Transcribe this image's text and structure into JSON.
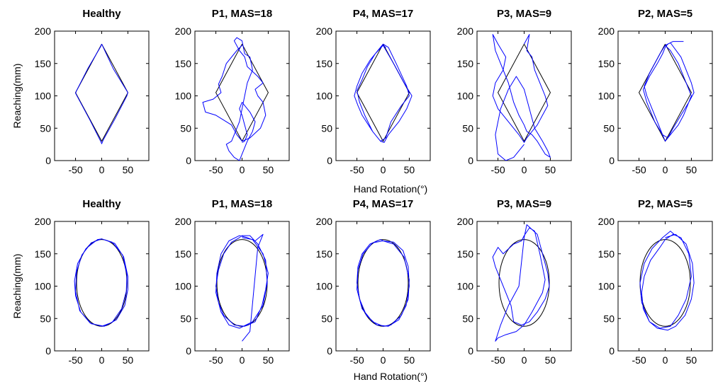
{
  "figure": {
    "xlabel": "Hand Rotation(°)",
    "ylabel": "Reaching(mm)",
    "colors": {
      "trajectory": "#0000ff",
      "reference": "#000000",
      "axes": "#000000"
    }
  },
  "chart_data": [
    {
      "type": "line",
      "row": 1,
      "col": 1,
      "shape": "diamond",
      "title": "Healthy",
      "xlim": [
        -90,
        90
      ],
      "ylim": [
        0,
        200
      ],
      "xticks": [
        -50,
        0,
        50
      ],
      "yticks": [
        0,
        50,
        100,
        150,
        200
      ],
      "ylabel": "Reaching(mm)",
      "xlabel": "",
      "reference": {
        "name": "",
        "x": [
          0,
          50,
          0,
          -50,
          0
        ],
        "y": [
          180,
          105,
          30,
          105,
          180
        ]
      },
      "series": [
        {
          "name": "",
          "x": [
            0,
            22,
            50,
            48,
            25,
            3,
            0,
            -2,
            -22,
            -50,
            -48,
            -26,
            -2,
            0
          ],
          "y": [
            180,
            142,
            105,
            100,
            64,
            32,
            26,
            30,
            62,
            104,
            108,
            143,
            176,
            180
          ]
        }
      ]
    },
    {
      "type": "line",
      "row": 1,
      "col": 2,
      "shape": "diamond",
      "title": "P1, MAS=18",
      "xlim": [
        -90,
        90
      ],
      "ylim": [
        0,
        200
      ],
      "xticks": [
        -50,
        0,
        50
      ],
      "yticks": [
        0,
        50,
        100,
        150,
        200
      ],
      "ylabel": "",
      "xlabel": "",
      "reference": {
        "name": "",
        "x": [
          0,
          50,
          0,
          -50,
          0
        ],
        "y": [
          180,
          105,
          30,
          105,
          180
        ]
      },
      "series": [
        {
          "name": "",
          "x": [
            0,
            -10,
            -30,
            -38,
            -45,
            -40,
            -55,
            -75,
            -70,
            -50,
            -30,
            -20,
            -10,
            0,
            15,
            35,
            45,
            40,
            30,
            25,
            40,
            30,
            10,
            5,
            -5,
            -15,
            -10,
            0,
            5,
            15,
            20,
            10,
            5,
            0,
            -5,
            -10,
            -15,
            -20,
            -30,
            -25,
            -15,
            -5,
            0,
            10,
            20,
            25,
            15,
            5,
            0,
            -5,
            0,
            5,
            10,
            5,
            0
          ],
          "y": [
            178,
            170,
            150,
            130,
            118,
            105,
            95,
            90,
            75,
            70,
            60,
            55,
            40,
            30,
            35,
            50,
            70,
            90,
            100,
            110,
            120,
            130,
            145,
            160,
            170,
            185,
            190,
            185,
            165,
            160,
            140,
            120,
            100,
            80,
            60,
            50,
            40,
            30,
            25,
            15,
            5,
            0,
            10,
            30,
            45,
            60,
            75,
            85,
            90,
            80,
            70,
            55,
            40,
            30,
            28
          ]
        }
      ]
    },
    {
      "type": "line",
      "row": 1,
      "col": 3,
      "shape": "diamond",
      "title": "P4, MAS=17",
      "xlim": [
        -90,
        90
      ],
      "ylim": [
        0,
        200
      ],
      "xticks": [
        -50,
        0,
        50
      ],
      "yticks": [
        0,
        50,
        100,
        150,
        200
      ],
      "ylabel": "",
      "xlabel": "",
      "reference": {
        "name": "",
        "x": [
          0,
          50,
          0,
          -50,
          0
        ],
        "y": [
          180,
          105,
          30,
          105,
          180
        ]
      },
      "series": [
        {
          "name": "",
          "x": [
            0,
            20,
            40,
            55,
            45,
            30,
            10,
            2,
            -5,
            -20,
            -40,
            -48,
            -55,
            -50,
            -40,
            -25,
            -10,
            0,
            10,
            25,
            45,
            50,
            35,
            15,
            5,
            -5,
            -20,
            -35,
            -45,
            -50,
            -40,
            -30,
            -15,
            0,
            5,
            0
          ],
          "y": [
            178,
            150,
            120,
            100,
            80,
            60,
            40,
            28,
            30,
            45,
            70,
            85,
            100,
            115,
            135,
            155,
            170,
            180,
            175,
            150,
            115,
            100,
            85,
            60,
            35,
            30,
            45,
            70,
            90,
            108,
            125,
            145,
            165,
            178,
            175,
            178
          ]
        }
      ]
    },
    {
      "type": "line",
      "row": 1,
      "col": 4,
      "shape": "diamond",
      "title": "P3, MAS=9",
      "xlim": [
        -90,
        90
      ],
      "ylim": [
        0,
        200
      ],
      "xticks": [
        -50,
        0,
        50
      ],
      "yticks": [
        0,
        50,
        100,
        150,
        200
      ],
      "ylabel": "",
      "xlabel": "",
      "reference": {
        "name": "",
        "x": [
          0,
          50,
          0,
          -50,
          0
        ],
        "y": [
          180,
          105,
          30,
          105,
          180
        ]
      },
      "series": [
        {
          "name": "",
          "x": [
            0,
            10,
            5,
            15,
            20,
            30,
            40,
            45,
            35,
            25,
            15,
            5,
            0,
            -10,
            -30,
            -50,
            -60,
            -55,
            -40,
            -35,
            -50,
            -60,
            -55,
            -45,
            -30,
            -20,
            -10,
            0,
            5,
            15,
            25,
            40,
            50,
            45,
            35,
            20,
            10,
            0,
            -15,
            -30,
            -45,
            -55,
            -50,
            -35,
            -20,
            0
          ],
          "y": [
            180,
            195,
            170,
            160,
            140,
            120,
            100,
            85,
            70,
            55,
            45,
            35,
            28,
            40,
            60,
            80,
            100,
            120,
            140,
            160,
            180,
            195,
            170,
            150,
            120,
            90,
            70,
            55,
            45,
            40,
            30,
            10,
            5,
            15,
            30,
            50,
            80,
            110,
            130,
            110,
            80,
            40,
            10,
            0,
            5,
            25
          ]
        }
      ]
    },
    {
      "type": "line",
      "row": 1,
      "col": 5,
      "shape": "diamond",
      "title": "P2, MAS=5",
      "xlim": [
        -90,
        90
      ],
      "ylim": [
        0,
        200
      ],
      "xticks": [
        -50,
        0,
        50
      ],
      "yticks": [
        0,
        50,
        100,
        150,
        200
      ],
      "ylabel": "",
      "xlabel": "",
      "reference": {
        "name": "",
        "x": [
          0,
          50,
          0,
          -50,
          0
        ],
        "y": [
          180,
          105,
          30,
          105,
          180
        ]
      },
      "series": [
        {
          "name": "",
          "x": [
            0,
            10,
            30,
            40,
            50,
            55,
            45,
            35,
            25,
            15,
            5,
            0,
            -5,
            -15,
            -25,
            -35,
            -40,
            -30,
            -20,
            -10,
            0,
            10,
            25,
            40,
            50,
            45,
            30,
            15,
            5,
            -5,
            -20,
            -35,
            -42,
            -30,
            -15,
            -5,
            0,
            5,
            15,
            35
          ],
          "y": [
            178,
            182,
            160,
            140,
            120,
            105,
            90,
            70,
            55,
            45,
            35,
            30,
            40,
            60,
            80,
            100,
            115,
            135,
            150,
            165,
            178,
            170,
            150,
            120,
            100,
            90,
            70,
            50,
            35,
            40,
            60,
            90,
            110,
            130,
            150,
            165,
            175,
            180,
            184,
            184
          ]
        }
      ]
    },
    {
      "type": "line",
      "row": 2,
      "col": 1,
      "shape": "ellipse",
      "title": "Healthy",
      "xlim": [
        -90,
        90
      ],
      "ylim": [
        0,
        200
      ],
      "xticks": [
        -50,
        0,
        50
      ],
      "yticks": [
        0,
        50,
        100,
        150,
        200
      ],
      "ylabel": "Reaching(mm)",
      "xlabel": "",
      "reference": {
        "name": "",
        "center": [
          0,
          105
        ],
        "radii": [
          48,
          67
        ]
      },
      "series": [
        {
          "name": "",
          "x": [
            0,
            25,
            42,
            50,
            50,
            44,
            28,
            5,
            -20,
            -40,
            -50,
            -52,
            -46,
            -30,
            -8,
            0,
            20,
            40,
            48,
            47,
            38,
            20,
            0,
            -22,
            -42,
            -50,
            -48,
            -38,
            -20,
            0
          ],
          "y": [
            173,
            166,
            145,
            115,
            95,
            70,
            48,
            38,
            42,
            60,
            85,
            108,
            135,
            158,
            172,
            173,
            168,
            148,
            118,
            92,
            65,
            44,
            38,
            43,
            62,
            92,
            122,
            148,
            167,
            173
          ]
        }
      ]
    },
    {
      "type": "line",
      "row": 2,
      "col": 2,
      "shape": "ellipse",
      "title": "P1, MAS=18",
      "xlim": [
        -90,
        90
      ],
      "ylim": [
        0,
        200
      ],
      "xticks": [
        -50,
        0,
        50
      ],
      "yticks": [
        0,
        50,
        100,
        150,
        200
      ],
      "ylabel": "",
      "xlabel": "",
      "reference": {
        "name": "",
        "center": [
          0,
          105
        ],
        "radii": [
          48,
          67
        ]
      },
      "series": [
        {
          "name": "",
          "x": [
            0,
            20,
            40,
            50,
            45,
            38,
            25,
            5,
            -15,
            -35,
            -45,
            -50,
            -45,
            -35,
            -20,
            -5,
            0,
            15,
            30,
            45,
            48,
            40,
            20,
            -5,
            -25,
            -40,
            -50,
            -48,
            -40,
            -25,
            -5,
            10,
            25,
            40,
            30,
            15,
            0
          ],
          "y": [
            175,
            172,
            150,
            120,
            95,
            70,
            45,
            38,
            40,
            55,
            75,
            100,
            125,
            150,
            168,
            175,
            178,
            178,
            165,
            140,
            105,
            70,
            45,
            35,
            40,
            60,
            90,
            120,
            150,
            170,
            178,
            175,
            170,
            180,
            160,
            30,
            15
          ]
        }
      ]
    },
    {
      "type": "line",
      "row": 2,
      "col": 3,
      "shape": "ellipse",
      "title": "P4, MAS=17",
      "xlim": [
        -90,
        90
      ],
      "ylim": [
        0,
        200
      ],
      "xticks": [
        -50,
        0,
        50
      ],
      "yticks": [
        0,
        50,
        100,
        150,
        200
      ],
      "ylabel": "",
      "xlabel": "",
      "reference": {
        "name": "",
        "center": [
          0,
          105
        ],
        "radii": [
          48,
          67
        ]
      },
      "series": [
        {
          "name": "",
          "x": [
            0,
            20,
            38,
            48,
            50,
            44,
            30,
            10,
            -12,
            -32,
            -45,
            -50,
            -48,
            -40,
            -25,
            -5,
            0,
            20,
            40,
            50,
            48,
            35,
            15,
            0,
            -20,
            -40,
            -50,
            -48,
            -38,
            -20,
            0
          ],
          "y": [
            170,
            168,
            155,
            130,
            100,
            70,
            48,
            38,
            40,
            55,
            80,
            105,
            130,
            150,
            165,
            172,
            170,
            165,
            145,
            110,
            80,
            55,
            40,
            38,
            45,
            65,
            95,
            125,
            150,
            167,
            170
          ]
        }
      ]
    },
    {
      "type": "line",
      "row": 2,
      "col": 4,
      "shape": "ellipse",
      "title": "P3, MAS=9",
      "xlim": [
        -90,
        90
      ],
      "ylim": [
        0,
        200
      ],
      "xticks": [
        -50,
        0,
        50
      ],
      "yticks": [
        0,
        50,
        100,
        150,
        200
      ],
      "ylabel": "",
      "xlabel": "",
      "reference": {
        "name": "",
        "center": [
          0,
          105
        ],
        "radii": [
          48,
          67
        ]
      },
      "series": [
        {
          "name": "",
          "x": [
            0,
            5,
            25,
            35,
            45,
            48,
            40,
            25,
            10,
            -5,
            -20,
            -25,
            -35,
            -45,
            -55,
            -60,
            -50,
            -40,
            -20,
            -5,
            0,
            10,
            20,
            30,
            40,
            35,
            15,
            0,
            -15,
            -35,
            -50,
            -55,
            -45,
            -30,
            -10,
            0
          ],
          "y": [
            175,
            195,
            180,
            150,
            120,
            100,
            80,
            60,
            45,
            40,
            45,
            70,
            90,
            110,
            130,
            145,
            160,
            150,
            165,
            170,
            178,
            190,
            185,
            150,
            110,
            90,
            60,
            40,
            30,
            25,
            20,
            15,
            40,
            70,
            100,
            175
          ]
        }
      ]
    },
    {
      "type": "line",
      "row": 2,
      "col": 5,
      "shape": "ellipse",
      "title": "P2, MAS=5",
      "xlim": [
        -90,
        90
      ],
      "ylim": [
        0,
        200
      ],
      "xticks": [
        -50,
        0,
        50
      ],
      "yticks": [
        0,
        50,
        100,
        150,
        200
      ],
      "ylabel": "",
      "xlabel": "",
      "reference": {
        "name": "",
        "center": [
          0,
          105
        ],
        "radii": [
          48,
          67
        ]
      },
      "series": [
        {
          "name": "",
          "x": [
            0,
            20,
            40,
            52,
            55,
            50,
            38,
            20,
            5,
            -15,
            -30,
            -42,
            -45,
            -40,
            -28,
            -10,
            0,
            15,
            30,
            45,
            50,
            40,
            25,
            10,
            -10,
            -30,
            -45,
            -48,
            -40,
            -25,
            -5,
            10,
            20
          ],
          "y": [
            175,
            180,
            165,
            135,
            105,
            80,
            55,
            38,
            32,
            35,
            45,
            65,
            90,
            115,
            140,
            160,
            172,
            180,
            175,
            150,
            115,
            80,
            55,
            38,
            35,
            45,
            75,
            105,
            135,
            158,
            175,
            185,
            178
          ]
        }
      ]
    }
  ]
}
